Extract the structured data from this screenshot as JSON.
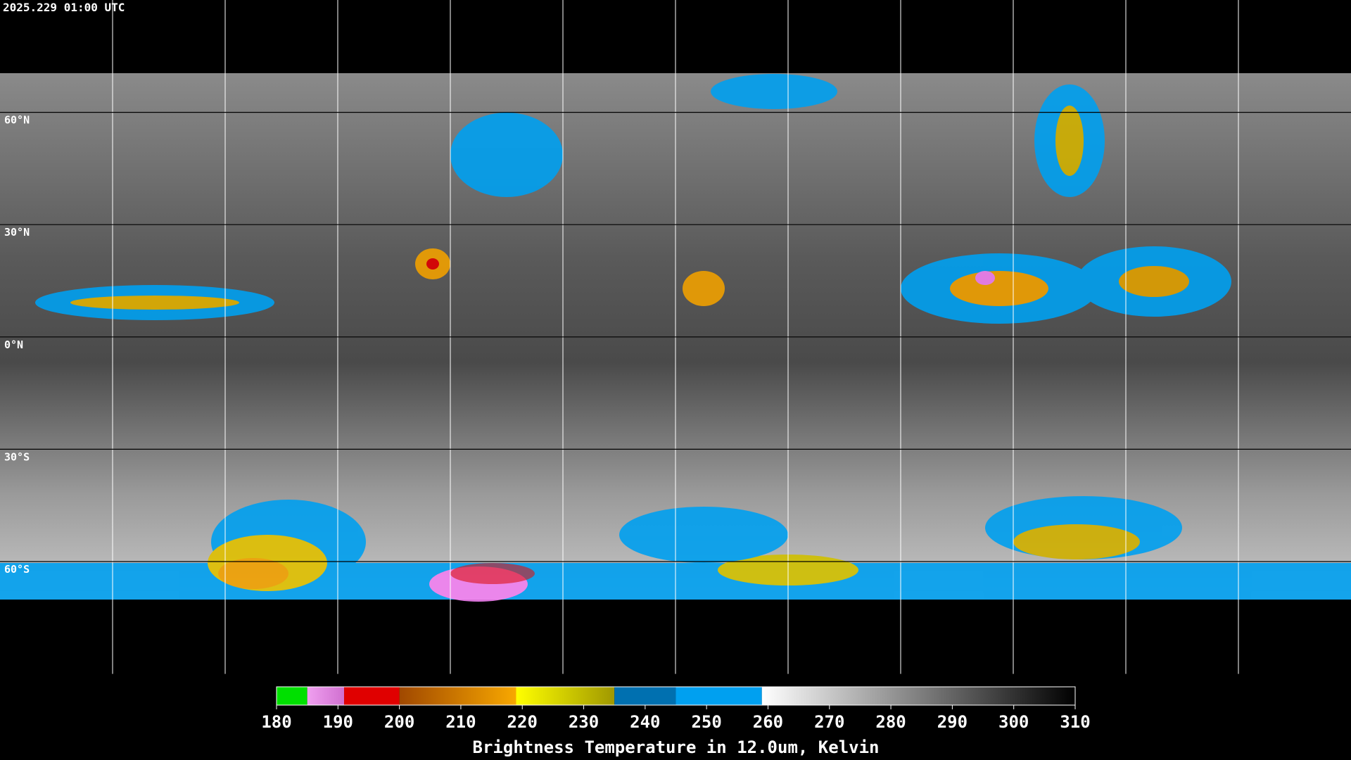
{
  "header": {
    "timestamp": "2025.229 01:00 UTC"
  },
  "map": {
    "lat_range": [
      90,
      -90
    ],
    "lat_ticks": [
      {
        "value": 60,
        "label": "60°N"
      },
      {
        "value": 30,
        "label": "30°N"
      },
      {
        "value": 0,
        "label": "0°N"
      },
      {
        "value": -30,
        "label": "30°S"
      },
      {
        "value": -60,
        "label": "60°S"
      }
    ]
  },
  "colorbar": {
    "title": "Brightness Temperature in 12.0um, Kelvin",
    "range": [
      180,
      310
    ],
    "ticks": [
      180,
      190,
      200,
      210,
      220,
      230,
      240,
      250,
      260,
      270,
      280,
      290,
      300,
      310
    ],
    "segments": [
      {
        "from": 180,
        "to": 185,
        "colors": [
          "#00e000",
          "#00e000"
        ]
      },
      {
        "from": 185,
        "to": 191,
        "colors": [
          "#f0a0f0",
          "#d070d0"
        ]
      },
      {
        "from": 191,
        "to": 200,
        "colors": [
          "#e00000",
          "#e00000"
        ]
      },
      {
        "from": 200,
        "to": 219,
        "colors": [
          "#a04800",
          "#f8a800"
        ]
      },
      {
        "from": 219,
        "to": 235,
        "colors": [
          "#ffff00",
          "#a09800"
        ]
      },
      {
        "from": 235,
        "to": 245,
        "colors": [
          "#0070b0",
          "#0070b0"
        ]
      },
      {
        "from": 245,
        "to": 259,
        "colors": [
          "#00a0f0",
          "#00a0f0"
        ]
      },
      {
        "from": 259,
        "to": 310,
        "colors": [
          "#ffffff",
          "#000000"
        ]
      }
    ]
  }
}
